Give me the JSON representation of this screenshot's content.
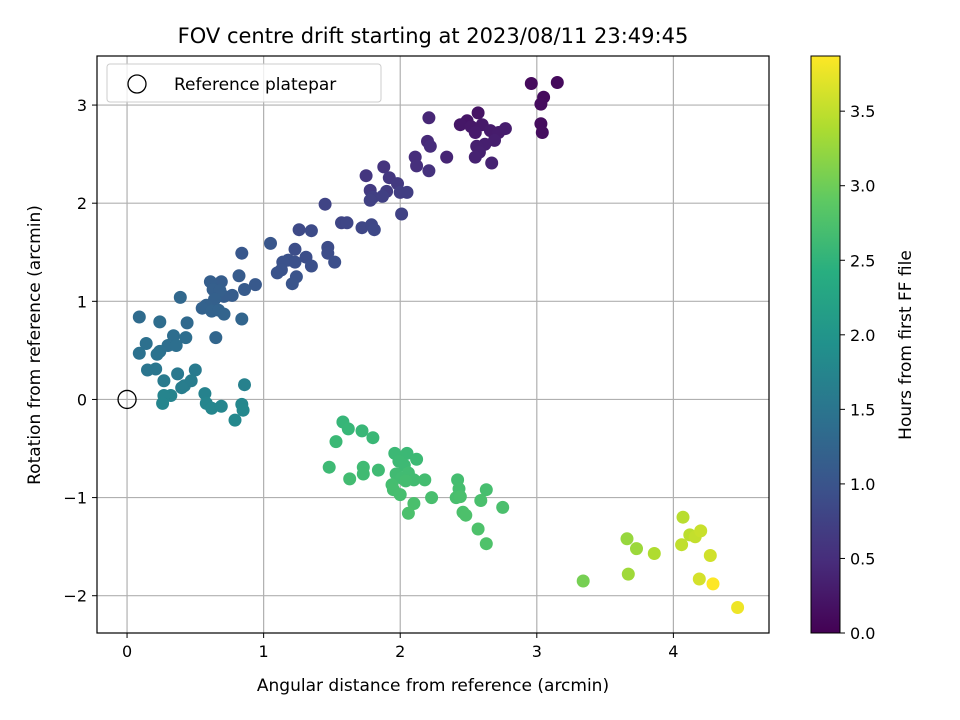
{
  "chart_data": {
    "type": "scatter",
    "title": "FOV centre drift starting at 2023/08/11 23:49:45",
    "xlabel": "Angular distance from reference (arcmin)",
    "ylabel": "Rotation from reference (arcmin)",
    "xlim": [
      -0.22,
      4.7
    ],
    "ylim": [
      -2.38,
      3.5
    ],
    "xticks": [
      0,
      1,
      2,
      3,
      4
    ],
    "yticks": [
      -2,
      -1,
      0,
      1,
      2,
      3
    ],
    "xtick_labels": [
      "0",
      "1",
      "2",
      "3",
      "4"
    ],
    "ytick_labels": [
      "−2",
      "−1",
      "0",
      "1",
      "2",
      "3"
    ],
    "grid": true,
    "legend": {
      "position": "top-left",
      "entries": [
        "Reference platepar"
      ]
    },
    "reference_point": {
      "x": 0,
      "y": 0
    },
    "colorbar": {
      "label": "Hours from first FF file",
      "colormap": "viridis",
      "range": [
        0,
        3.87
      ],
      "ticks": [
        0,
        0.5,
        1,
        1.5,
        2,
        2.5,
        3,
        3.5
      ],
      "tick_labels": [
        "0.0",
        "0.5",
        "1.0",
        "1.5",
        "2.0",
        "2.5",
        "3.0",
        "3.5"
      ]
    },
    "points": [
      {
        "x": 2.96,
        "y": 3.22,
        "c": 0.1
      },
      {
        "x": 3.15,
        "y": 3.23,
        "c": 0.1
      },
      {
        "x": 3.05,
        "y": 3.08,
        "c": 0.11
      },
      {
        "x": 3.03,
        "y": 3.01,
        "c": 0.12
      },
      {
        "x": 3.03,
        "y": 2.81,
        "c": 0.13
      },
      {
        "x": 3.04,
        "y": 2.72,
        "c": 0.14
      },
      {
        "x": 2.57,
        "y": 2.92,
        "c": 0.2
      },
      {
        "x": 2.49,
        "y": 2.84,
        "c": 0.22
      },
      {
        "x": 2.44,
        "y": 2.8,
        "c": 0.24
      },
      {
        "x": 2.52,
        "y": 2.78,
        "c": 0.25
      },
      {
        "x": 2.6,
        "y": 2.8,
        "c": 0.26
      },
      {
        "x": 2.55,
        "y": 2.72,
        "c": 0.28
      },
      {
        "x": 2.66,
        "y": 2.74,
        "c": 0.29
      },
      {
        "x": 2.72,
        "y": 2.72,
        "c": 0.3
      },
      {
        "x": 2.77,
        "y": 2.76,
        "c": 0.31
      },
      {
        "x": 2.69,
        "y": 2.64,
        "c": 0.32
      },
      {
        "x": 2.62,
        "y": 2.6,
        "c": 0.33
      },
      {
        "x": 2.56,
        "y": 2.58,
        "c": 0.34
      },
      {
        "x": 2.58,
        "y": 2.52,
        "c": 0.35
      },
      {
        "x": 2.55,
        "y": 2.47,
        "c": 0.36
      },
      {
        "x": 2.67,
        "y": 2.41,
        "c": 0.37
      },
      {
        "x": 2.34,
        "y": 2.47,
        "c": 0.4
      },
      {
        "x": 2.21,
        "y": 2.87,
        "c": 0.42
      },
      {
        "x": 2.2,
        "y": 2.63,
        "c": 0.45
      },
      {
        "x": 2.22,
        "y": 2.58,
        "c": 0.48
      },
      {
        "x": 2.11,
        "y": 2.47,
        "c": 0.5
      },
      {
        "x": 2.12,
        "y": 2.38,
        "c": 0.52
      },
      {
        "x": 2.21,
        "y": 2.33,
        "c": 0.55
      },
      {
        "x": 1.88,
        "y": 2.37,
        "c": 0.58
      },
      {
        "x": 1.75,
        "y": 2.28,
        "c": 0.6
      },
      {
        "x": 1.92,
        "y": 2.26,
        "c": 0.62
      },
      {
        "x": 1.98,
        "y": 2.2,
        "c": 0.64
      },
      {
        "x": 1.78,
        "y": 2.13,
        "c": 0.66
      },
      {
        "x": 1.9,
        "y": 2.12,
        "c": 0.68
      },
      {
        "x": 2.0,
        "y": 2.11,
        "c": 0.7
      },
      {
        "x": 2.05,
        "y": 2.11,
        "c": 0.71
      },
      {
        "x": 1.8,
        "y": 2.06,
        "c": 0.72
      },
      {
        "x": 1.87,
        "y": 2.07,
        "c": 0.73
      },
      {
        "x": 1.78,
        "y": 2.03,
        "c": 0.74
      },
      {
        "x": 2.01,
        "y": 1.89,
        "c": 0.76
      },
      {
        "x": 1.45,
        "y": 1.99,
        "c": 0.78
      },
      {
        "x": 1.57,
        "y": 1.8,
        "c": 0.8
      },
      {
        "x": 1.61,
        "y": 1.8,
        "c": 0.81
      },
      {
        "x": 1.72,
        "y": 1.75,
        "c": 0.82
      },
      {
        "x": 1.79,
        "y": 1.78,
        "c": 0.83
      },
      {
        "x": 1.81,
        "y": 1.73,
        "c": 0.84
      },
      {
        "x": 1.26,
        "y": 1.73,
        "c": 0.86
      },
      {
        "x": 1.35,
        "y": 1.72,
        "c": 0.88
      },
      {
        "x": 1.47,
        "y": 1.55,
        "c": 0.89
      },
      {
        "x": 1.47,
        "y": 1.49,
        "c": 0.9
      },
      {
        "x": 1.23,
        "y": 1.53,
        "c": 0.91
      },
      {
        "x": 1.31,
        "y": 1.45,
        "c": 0.92
      },
      {
        "x": 1.52,
        "y": 1.4,
        "c": 0.93
      },
      {
        "x": 1.35,
        "y": 1.36,
        "c": 0.94
      },
      {
        "x": 1.18,
        "y": 1.42,
        "c": 0.95
      },
      {
        "x": 1.23,
        "y": 1.4,
        "c": 0.96
      },
      {
        "x": 1.14,
        "y": 1.4,
        "c": 0.97
      },
      {
        "x": 1.13,
        "y": 1.32,
        "c": 0.98
      },
      {
        "x": 1.1,
        "y": 1.29,
        "c": 0.99
      },
      {
        "x": 1.24,
        "y": 1.25,
        "c": 1.0
      },
      {
        "x": 1.21,
        "y": 1.18,
        "c": 1.01
      },
      {
        "x": 1.05,
        "y": 1.59,
        "c": 1.03
      },
      {
        "x": 0.84,
        "y": 1.49,
        "c": 1.05
      },
      {
        "x": 0.94,
        "y": 1.17,
        "c": 1.08
      },
      {
        "x": 0.82,
        "y": 1.26,
        "c": 1.1
      },
      {
        "x": 0.86,
        "y": 1.12,
        "c": 1.11
      },
      {
        "x": 0.77,
        "y": 1.06,
        "c": 1.12
      },
      {
        "x": 0.71,
        "y": 1.05,
        "c": 1.13
      },
      {
        "x": 0.69,
        "y": 1.2,
        "c": 1.14
      },
      {
        "x": 0.61,
        "y": 1.2,
        "c": 1.15
      },
      {
        "x": 0.63,
        "y": 1.12,
        "c": 1.16
      },
      {
        "x": 0.68,
        "y": 1.11,
        "c": 1.17
      },
      {
        "x": 0.64,
        "y": 1.02,
        "c": 1.18
      },
      {
        "x": 0.58,
        "y": 0.96,
        "c": 1.2
      },
      {
        "x": 0.55,
        "y": 0.93,
        "c": 1.21
      },
      {
        "x": 0.62,
        "y": 0.9,
        "c": 1.22
      },
      {
        "x": 0.67,
        "y": 0.91,
        "c": 1.23
      },
      {
        "x": 0.71,
        "y": 0.87,
        "c": 1.24
      },
      {
        "x": 0.84,
        "y": 0.82,
        "c": 1.25
      },
      {
        "x": 0.65,
        "y": 0.63,
        "c": 1.27
      },
      {
        "x": 0.39,
        "y": 1.04,
        "c": 1.3
      },
      {
        "x": 0.44,
        "y": 0.78,
        "c": 1.32
      },
      {
        "x": 0.09,
        "y": 0.84,
        "c": 1.35
      },
      {
        "x": 0.24,
        "y": 0.79,
        "c": 1.37
      },
      {
        "x": 0.34,
        "y": 0.65,
        "c": 1.38
      },
      {
        "x": 0.43,
        "y": 0.63,
        "c": 1.39
      },
      {
        "x": 0.3,
        "y": 0.55,
        "c": 1.4
      },
      {
        "x": 0.36,
        "y": 0.55,
        "c": 1.41
      },
      {
        "x": 0.14,
        "y": 0.57,
        "c": 1.42
      },
      {
        "x": 0.24,
        "y": 0.49,
        "c": 1.43
      },
      {
        "x": 0.09,
        "y": 0.47,
        "c": 1.44
      },
      {
        "x": 0.22,
        "y": 0.46,
        "c": 1.45
      },
      {
        "x": 0.15,
        "y": 0.3,
        "c": 1.5
      },
      {
        "x": 0.21,
        "y": 0.31,
        "c": 1.52
      },
      {
        "x": 0.37,
        "y": 0.26,
        "c": 1.55
      },
      {
        "x": 0.5,
        "y": 0.3,
        "c": 1.57
      },
      {
        "x": 0.27,
        "y": 0.19,
        "c": 1.58
      },
      {
        "x": 0.42,
        "y": 0.14,
        "c": 1.6
      },
      {
        "x": 0.47,
        "y": 0.19,
        "c": 1.61
      },
      {
        "x": 0.4,
        "y": 0.12,
        "c": 1.62
      },
      {
        "x": 0.86,
        "y": 0.15,
        "c": 1.68
      },
      {
        "x": 0.57,
        "y": 0.06,
        "c": 1.7
      },
      {
        "x": 0.32,
        "y": 0.04,
        "c": 1.72
      },
      {
        "x": 0.27,
        "y": 0.04,
        "c": 1.73
      },
      {
        "x": 0.26,
        "y": -0.04,
        "c": 1.74
      },
      {
        "x": 0.58,
        "y": -0.04,
        "c": 1.75
      },
      {
        "x": 0.62,
        "y": -0.09,
        "c": 1.76
      },
      {
        "x": 0.69,
        "y": -0.07,
        "c": 1.77
      },
      {
        "x": 0.84,
        "y": -0.05,
        "c": 1.78
      },
      {
        "x": 0.85,
        "y": -0.11,
        "c": 1.79
      },
      {
        "x": 0.79,
        "y": -0.21,
        "c": 1.8
      },
      {
        "x": 1.58,
        "y": -0.23,
        "c": 2.55
      },
      {
        "x": 1.62,
        "y": -0.3,
        "c": 2.56
      },
      {
        "x": 1.72,
        "y": -0.32,
        "c": 2.57
      },
      {
        "x": 1.8,
        "y": -0.39,
        "c": 2.58
      },
      {
        "x": 1.53,
        "y": -0.43,
        "c": 2.59
      },
      {
        "x": 1.96,
        "y": -0.55,
        "c": 2.6
      },
      {
        "x": 2.05,
        "y": -0.55,
        "c": 2.6
      },
      {
        "x": 2.12,
        "y": -0.61,
        "c": 2.61
      },
      {
        "x": 1.99,
        "y": -0.63,
        "c": 2.61
      },
      {
        "x": 2.03,
        "y": -0.67,
        "c": 2.62
      },
      {
        "x": 1.48,
        "y": -0.69,
        "c": 2.62
      },
      {
        "x": 1.73,
        "y": -0.69,
        "c": 2.63
      },
      {
        "x": 1.84,
        "y": -0.72,
        "c": 2.63
      },
      {
        "x": 1.73,
        "y": -0.76,
        "c": 2.64
      },
      {
        "x": 1.97,
        "y": -0.76,
        "c": 2.64
      },
      {
        "x": 2.06,
        "y": -0.75,
        "c": 2.65
      },
      {
        "x": 2.01,
        "y": -0.8,
        "c": 2.65
      },
      {
        "x": 1.63,
        "y": -0.81,
        "c": 2.66
      },
      {
        "x": 2.1,
        "y": -0.82,
        "c": 2.66
      },
      {
        "x": 2.18,
        "y": -0.82,
        "c": 2.67
      },
      {
        "x": 2.04,
        "y": -0.83,
        "c": 2.67
      },
      {
        "x": 2.42,
        "y": -0.82,
        "c": 2.68
      },
      {
        "x": 1.94,
        "y": -0.87,
        "c": 2.68
      },
      {
        "x": 1.95,
        "y": -0.92,
        "c": 2.69
      },
      {
        "x": 2.43,
        "y": -0.91,
        "c": 2.69
      },
      {
        "x": 2.63,
        "y": -0.92,
        "c": 2.7
      },
      {
        "x": 2.0,
        "y": -0.97,
        "c": 2.7
      },
      {
        "x": 2.41,
        "y": -1.0,
        "c": 2.71
      },
      {
        "x": 2.23,
        "y": -1.0,
        "c": 2.71
      },
      {
        "x": 2.44,
        "y": -0.99,
        "c": 2.72
      },
      {
        "x": 2.59,
        "y": -1.03,
        "c": 2.72
      },
      {
        "x": 2.1,
        "y": -1.06,
        "c": 2.73
      },
      {
        "x": 2.75,
        "y": -1.1,
        "c": 2.73
      },
      {
        "x": 2.46,
        "y": -1.15,
        "c": 2.74
      },
      {
        "x": 2.06,
        "y": -1.16,
        "c": 2.74
      },
      {
        "x": 2.48,
        "y": -1.18,
        "c": 2.75
      },
      {
        "x": 2.57,
        "y": -1.32,
        "c": 2.76
      },
      {
        "x": 2.63,
        "y": -1.47,
        "c": 2.77
      },
      {
        "x": 3.34,
        "y": -1.85,
        "c": 3.05
      },
      {
        "x": 3.66,
        "y": -1.42,
        "c": 3.25
      },
      {
        "x": 3.73,
        "y": -1.52,
        "c": 3.28
      },
      {
        "x": 3.67,
        "y": -1.78,
        "c": 3.3
      },
      {
        "x": 3.86,
        "y": -1.57,
        "c": 3.4
      },
      {
        "x": 4.07,
        "y": -1.2,
        "c": 3.45
      },
      {
        "x": 4.12,
        "y": -1.38,
        "c": 3.47
      },
      {
        "x": 4.06,
        "y": -1.48,
        "c": 3.5
      },
      {
        "x": 4.16,
        "y": -1.4,
        "c": 3.52
      },
      {
        "x": 4.2,
        "y": -1.34,
        "c": 3.55
      },
      {
        "x": 4.27,
        "y": -1.59,
        "c": 3.6
      },
      {
        "x": 4.19,
        "y": -1.83,
        "c": 3.62
      },
      {
        "x": 4.29,
        "y": -1.88,
        "c": 3.87
      },
      {
        "x": 4.47,
        "y": -2.12,
        "c": 3.78
      }
    ]
  }
}
